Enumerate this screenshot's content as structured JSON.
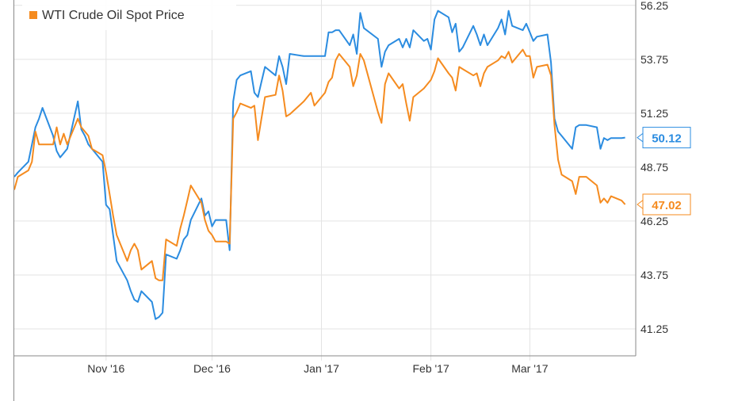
{
  "chart_data": {
    "type": "line",
    "xlabel": "",
    "ylabel": "",
    "x_range": [
      "2016-10-06",
      "2017-03-31"
    ],
    "ylim": [
      40.0,
      56.5
    ],
    "y_ticks": [
      "41.25",
      "43.75",
      "46.25",
      "48.75",
      "51.25",
      "53.75",
      "56.25"
    ],
    "y_tick_values": [
      41.25,
      43.75,
      46.25,
      48.75,
      51.25,
      53.75,
      56.25
    ],
    "x_ticks": [
      "Nov '16",
      "Dec '16",
      "Jan '17",
      "Feb '17",
      "Mar '17"
    ],
    "x_tick_dates": [
      "2016-11-01",
      "2016-12-01",
      "2017-01-01",
      "2017-02-01",
      "2017-03-01"
    ],
    "grid": true,
    "legend_position": "top-left",
    "series": [
      {
        "name": "",
        "color": "#2b8ce0",
        "end_label": "50.12",
        "points": [
          [
            "2016-10-06",
            48.3
          ],
          [
            "2016-10-07",
            48.5
          ],
          [
            "2016-10-10",
            49.0
          ],
          [
            "2016-10-11",
            49.8
          ],
          [
            "2016-10-12",
            50.6
          ],
          [
            "2016-10-13",
            51.0
          ],
          [
            "2016-10-14",
            51.5
          ],
          [
            "2016-10-17",
            50.2
          ],
          [
            "2016-10-18",
            49.5
          ],
          [
            "2016-10-19",
            49.2
          ],
          [
            "2016-10-20",
            49.4
          ],
          [
            "2016-10-21",
            49.6
          ],
          [
            "2016-10-24",
            51.8
          ],
          [
            "2016-10-25",
            50.5
          ],
          [
            "2016-10-26",
            50.2
          ],
          [
            "2016-10-27",
            49.8
          ],
          [
            "2016-10-28",
            49.6
          ],
          [
            "2016-10-31",
            49.0
          ],
          [
            "2016-11-01",
            47.0
          ],
          [
            "2016-11-02",
            46.8
          ],
          [
            "2016-11-03",
            45.6
          ],
          [
            "2016-11-04",
            44.4
          ],
          [
            "2016-11-07",
            43.5
          ],
          [
            "2016-11-08",
            43.0
          ],
          [
            "2016-11-09",
            42.6
          ],
          [
            "2016-11-10",
            42.5
          ],
          [
            "2016-11-11",
            43.0
          ],
          [
            "2016-11-14",
            42.5
          ],
          [
            "2016-11-15",
            41.7
          ],
          [
            "2016-11-16",
            41.8
          ],
          [
            "2016-11-17",
            42.0
          ],
          [
            "2016-11-18",
            44.7
          ],
          [
            "2016-11-21",
            44.5
          ],
          [
            "2016-11-22",
            44.9
          ],
          [
            "2016-11-23",
            45.4
          ],
          [
            "2016-11-24",
            45.6
          ],
          [
            "2016-11-25",
            46.3
          ],
          [
            "2016-11-28",
            47.3
          ],
          [
            "2016-11-29",
            46.5
          ],
          [
            "2016-11-30",
            46.7
          ],
          [
            "2016-12-01",
            46.0
          ],
          [
            "2016-12-02",
            46.3
          ],
          [
            "2016-12-05",
            46.3
          ],
          [
            "2016-12-06",
            44.9
          ],
          [
            "2016-12-07",
            51.8
          ],
          [
            "2016-12-08",
            52.8
          ],
          [
            "2016-12-09",
            53.0
          ],
          [
            "2016-12-12",
            53.2
          ],
          [
            "2016-12-13",
            52.2
          ],
          [
            "2016-12-14",
            52.0
          ],
          [
            "2016-12-15",
            52.7
          ],
          [
            "2016-12-16",
            53.4
          ],
          [
            "2016-12-19",
            53.0
          ],
          [
            "2016-12-20",
            53.9
          ],
          [
            "2016-12-21",
            53.4
          ],
          [
            "2016-12-22",
            52.6
          ],
          [
            "2016-12-23",
            54.0
          ],
          [
            "2016-12-27",
            53.9
          ],
          [
            "2016-12-28",
            53.9
          ],
          [
            "2016-12-29",
            53.9
          ],
          [
            "2016-12-30",
            53.9
          ],
          [
            "2017-01-02",
            53.9
          ],
          [
            "2017-01-03",
            55.0
          ],
          [
            "2017-01-04",
            55.0
          ],
          [
            "2017-01-05",
            55.1
          ],
          [
            "2017-01-06",
            55.1
          ],
          [
            "2017-01-09",
            54.4
          ],
          [
            "2017-01-10",
            54.9
          ],
          [
            "2017-01-11",
            54.0
          ],
          [
            "2017-01-12",
            55.9
          ],
          [
            "2017-01-13",
            55.2
          ],
          [
            "2017-01-17",
            54.7
          ],
          [
            "2017-01-18",
            53.4
          ],
          [
            "2017-01-19",
            54.1
          ],
          [
            "2017-01-20",
            54.4
          ],
          [
            "2017-01-23",
            54.7
          ],
          [
            "2017-01-24",
            54.3
          ],
          [
            "2017-01-25",
            54.7
          ],
          [
            "2017-01-26",
            54.3
          ],
          [
            "2017-01-27",
            55.1
          ],
          [
            "2017-01-30",
            54.6
          ],
          [
            "2017-01-31",
            54.7
          ],
          [
            "2017-02-01",
            54.2
          ],
          [
            "2017-02-02",
            55.6
          ],
          [
            "2017-02-03",
            56.0
          ],
          [
            "2017-02-06",
            55.7
          ],
          [
            "2017-02-07",
            55.0
          ],
          [
            "2017-02-08",
            55.4
          ],
          [
            "2017-02-09",
            54.1
          ],
          [
            "2017-02-10",
            54.3
          ],
          [
            "2017-02-13",
            55.3
          ],
          [
            "2017-02-14",
            54.9
          ],
          [
            "2017-02-15",
            54.4
          ],
          [
            "2017-02-16",
            54.9
          ],
          [
            "2017-02-17",
            54.4
          ],
          [
            "2017-02-20",
            55.2
          ],
          [
            "2017-02-21",
            55.6
          ],
          [
            "2017-02-22",
            54.9
          ],
          [
            "2017-02-23",
            56.0
          ],
          [
            "2017-02-24",
            55.3
          ],
          [
            "2017-02-27",
            55.1
          ],
          [
            "2017-02-28",
            55.4
          ],
          [
            "2017-03-01",
            55.0
          ],
          [
            "2017-03-02",
            54.6
          ],
          [
            "2017-03-03",
            54.8
          ],
          [
            "2017-03-06",
            54.9
          ],
          [
            "2017-03-07",
            53.6
          ],
          [
            "2017-03-08",
            51.0
          ],
          [
            "2017-03-09",
            50.4
          ],
          [
            "2017-03-10",
            50.2
          ],
          [
            "2017-03-13",
            49.6
          ],
          [
            "2017-03-14",
            50.6
          ],
          [
            "2017-03-15",
            50.7
          ],
          [
            "2017-03-17",
            50.7
          ],
          [
            "2017-03-20",
            50.6
          ],
          [
            "2017-03-21",
            49.6
          ],
          [
            "2017-03-22",
            50.1
          ],
          [
            "2017-03-23",
            50.0
          ],
          [
            "2017-03-24",
            50.1
          ],
          [
            "2017-03-27",
            50.1
          ],
          [
            "2017-03-28",
            50.12
          ]
        ]
      },
      {
        "name": "WTI Crude Oil Spot Price",
        "color": "#f58b1f",
        "end_label": "47.02",
        "points": [
          [
            "2016-10-06",
            47.7
          ],
          [
            "2016-10-07",
            48.3
          ],
          [
            "2016-10-10",
            48.6
          ],
          [
            "2016-10-11",
            49.0
          ],
          [
            "2016-10-12",
            50.4
          ],
          [
            "2016-10-13",
            49.8
          ],
          [
            "2016-10-14",
            49.8
          ],
          [
            "2016-10-17",
            49.8
          ],
          [
            "2016-10-18",
            50.6
          ],
          [
            "2016-10-19",
            49.8
          ],
          [
            "2016-10-20",
            50.3
          ],
          [
            "2016-10-21",
            49.8
          ],
          [
            "2016-10-24",
            51.0
          ],
          [
            "2016-10-25",
            50.6
          ],
          [
            "2016-10-26",
            50.4
          ],
          [
            "2016-10-27",
            50.2
          ],
          [
            "2016-10-28",
            49.6
          ],
          [
            "2016-10-31",
            49.3
          ],
          [
            "2016-11-01",
            48.5
          ],
          [
            "2016-11-02",
            47.5
          ],
          [
            "2016-11-03",
            46.5
          ],
          [
            "2016-11-04",
            45.6
          ],
          [
            "2016-11-07",
            44.4
          ],
          [
            "2016-11-08",
            44.9
          ],
          [
            "2016-11-09",
            45.2
          ],
          [
            "2016-11-10",
            44.9
          ],
          [
            "2016-11-11",
            44.0
          ],
          [
            "2016-11-14",
            44.4
          ],
          [
            "2016-11-15",
            43.6
          ],
          [
            "2016-11-16",
            43.5
          ],
          [
            "2016-11-17",
            43.5
          ],
          [
            "2016-11-18",
            45.4
          ],
          [
            "2016-11-21",
            45.1
          ],
          [
            "2016-11-22",
            45.9
          ],
          [
            "2016-11-23",
            46.5
          ],
          [
            "2016-11-24",
            47.2
          ],
          [
            "2016-11-25",
            47.9
          ],
          [
            "2016-11-28",
            47.1
          ],
          [
            "2016-11-29",
            46.3
          ],
          [
            "2016-11-30",
            45.8
          ],
          [
            "2016-12-01",
            45.6
          ],
          [
            "2016-12-02",
            45.3
          ],
          [
            "2016-12-05",
            45.3
          ],
          [
            "2016-12-06",
            45.2
          ],
          [
            "2016-12-07",
            51.0
          ],
          [
            "2016-12-08",
            51.3
          ],
          [
            "2016-12-09",
            51.7
          ],
          [
            "2016-12-12",
            51.5
          ],
          [
            "2016-12-13",
            51.6
          ],
          [
            "2016-12-14",
            50.0
          ],
          [
            "2016-12-15",
            51.0
          ],
          [
            "2016-12-16",
            52.0
          ],
          [
            "2016-12-19",
            52.1
          ],
          [
            "2016-12-20",
            53.0
          ],
          [
            "2016-12-21",
            52.3
          ],
          [
            "2016-12-22",
            51.1
          ],
          [
            "2016-12-23",
            51.2
          ],
          [
            "2016-12-27",
            51.8
          ],
          [
            "2016-12-28",
            52.0
          ],
          [
            "2016-12-29",
            52.2
          ],
          [
            "2016-12-30",
            51.6
          ],
          [
            "2017-01-02",
            52.2
          ],
          [
            "2017-01-03",
            52.7
          ],
          [
            "2017-01-04",
            52.9
          ],
          [
            "2017-01-05",
            53.7
          ],
          [
            "2017-01-06",
            54.0
          ],
          [
            "2017-01-09",
            53.4
          ],
          [
            "2017-01-10",
            52.5
          ],
          [
            "2017-01-11",
            53.0
          ],
          [
            "2017-01-12",
            54.0
          ],
          [
            "2017-01-13",
            53.7
          ],
          [
            "2017-01-17",
            51.3
          ],
          [
            "2017-01-18",
            50.8
          ],
          [
            "2017-01-19",
            52.6
          ],
          [
            "2017-01-20",
            53.1
          ],
          [
            "2017-01-23",
            52.4
          ],
          [
            "2017-01-24",
            52.6
          ],
          [
            "2017-01-25",
            51.7
          ],
          [
            "2017-01-26",
            50.9
          ],
          [
            "2017-01-27",
            52.0
          ],
          [
            "2017-01-30",
            52.4
          ],
          [
            "2017-01-31",
            52.6
          ],
          [
            "2017-02-01",
            52.8
          ],
          [
            "2017-02-02",
            53.2
          ],
          [
            "2017-02-03",
            53.8
          ],
          [
            "2017-02-06",
            53.1
          ],
          [
            "2017-02-07",
            52.9
          ],
          [
            "2017-02-08",
            52.3
          ],
          [
            "2017-02-09",
            53.4
          ],
          [
            "2017-02-10",
            53.3
          ],
          [
            "2017-02-13",
            53.0
          ],
          [
            "2017-02-14",
            53.1
          ],
          [
            "2017-02-15",
            52.5
          ],
          [
            "2017-02-16",
            53.1
          ],
          [
            "2017-02-17",
            53.4
          ],
          [
            "2017-02-20",
            53.7
          ],
          [
            "2017-02-21",
            53.9
          ],
          [
            "2017-02-22",
            53.8
          ],
          [
            "2017-02-23",
            54.1
          ],
          [
            "2017-02-24",
            53.6
          ],
          [
            "2017-02-27",
            54.2
          ],
          [
            "2017-02-28",
            53.9
          ],
          [
            "2017-03-01",
            53.9
          ],
          [
            "2017-03-02",
            52.9
          ],
          [
            "2017-03-03",
            53.4
          ],
          [
            "2017-03-06",
            53.5
          ],
          [
            "2017-03-07",
            53.0
          ],
          [
            "2017-03-08",
            50.7
          ],
          [
            "2017-03-09",
            49.1
          ],
          [
            "2017-03-10",
            48.4
          ],
          [
            "2017-03-13",
            48.1
          ],
          [
            "2017-03-14",
            47.5
          ],
          [
            "2017-03-15",
            48.3
          ],
          [
            "2017-03-17",
            48.3
          ],
          [
            "2017-03-20",
            47.9
          ],
          [
            "2017-03-21",
            47.1
          ],
          [
            "2017-03-22",
            47.3
          ],
          [
            "2017-03-23",
            47.1
          ],
          [
            "2017-03-24",
            47.4
          ],
          [
            "2017-03-27",
            47.2
          ],
          [
            "2017-03-28",
            47.02
          ]
        ]
      }
    ]
  },
  "colors": {
    "grid": "#e3e3e3",
    "axis": "#8a8a8a",
    "tick_text": "#333333"
  }
}
